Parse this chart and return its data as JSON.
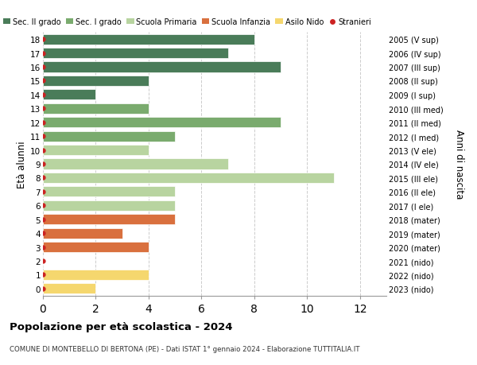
{
  "ages": [
    0,
    1,
    2,
    3,
    4,
    5,
    6,
    7,
    8,
    9,
    10,
    11,
    12,
    13,
    14,
    15,
    16,
    17,
    18
  ],
  "years": [
    "2023 (nido)",
    "2022 (nido)",
    "2021 (nido)",
    "2020 (mater)",
    "2019 (mater)",
    "2018 (mater)",
    "2017 (I ele)",
    "2016 (II ele)",
    "2015 (III ele)",
    "2014 (IV ele)",
    "2013 (V ele)",
    "2012 (I med)",
    "2011 (II med)",
    "2010 (III med)",
    "2009 (I sup)",
    "2008 (II sup)",
    "2007 (III sup)",
    "2006 (IV sup)",
    "2005 (V sup)"
  ],
  "values": [
    2,
    4,
    0,
    4,
    3,
    5,
    5,
    5,
    11,
    7,
    4,
    5,
    9,
    4,
    2,
    4,
    9,
    7,
    8
  ],
  "colors": [
    "#f5d76e",
    "#f5d76e",
    "#f5d76e",
    "#d9703e",
    "#d9703e",
    "#d9703e",
    "#b8d4a0",
    "#b8d4a0",
    "#b8d4a0",
    "#b8d4a0",
    "#b8d4a0",
    "#7aab6e",
    "#7aab6e",
    "#7aab6e",
    "#4a7c59",
    "#4a7c59",
    "#4a7c59",
    "#4a7c59",
    "#4a7c59"
  ],
  "legend_labels": [
    "Sec. II grado",
    "Sec. I grado",
    "Scuola Primaria",
    "Scuola Infanzia",
    "Asilo Nido",
    "Stranieri"
  ],
  "legend_colors": [
    "#4a7c59",
    "#7aab6e",
    "#b8d4a0",
    "#d9703e",
    "#f5d76e",
    "#cc2222"
  ],
  "stranieri_dot_color": "#cc2222",
  "title": "Popolazione per età scolastica - 2024",
  "subtitle": "COMUNE DI MONTEBELLO DI BERTONA (PE) - Dati ISTAT 1° gennaio 2024 - Elaborazione TUTTITALIA.IT",
  "ylabel": "Età alunni",
  "right_ylabel": "Anni di nascita",
  "xlim": [
    0,
    13
  ],
  "ylim": [
    -0.5,
    18.5
  ],
  "xticks": [
    0,
    2,
    4,
    6,
    8,
    10,
    12
  ],
  "background_color": "#ffffff",
  "bar_height": 0.75,
  "grid_color": "#cccccc",
  "fig_width": 6.0,
  "fig_height": 4.6,
  "dpi": 100
}
